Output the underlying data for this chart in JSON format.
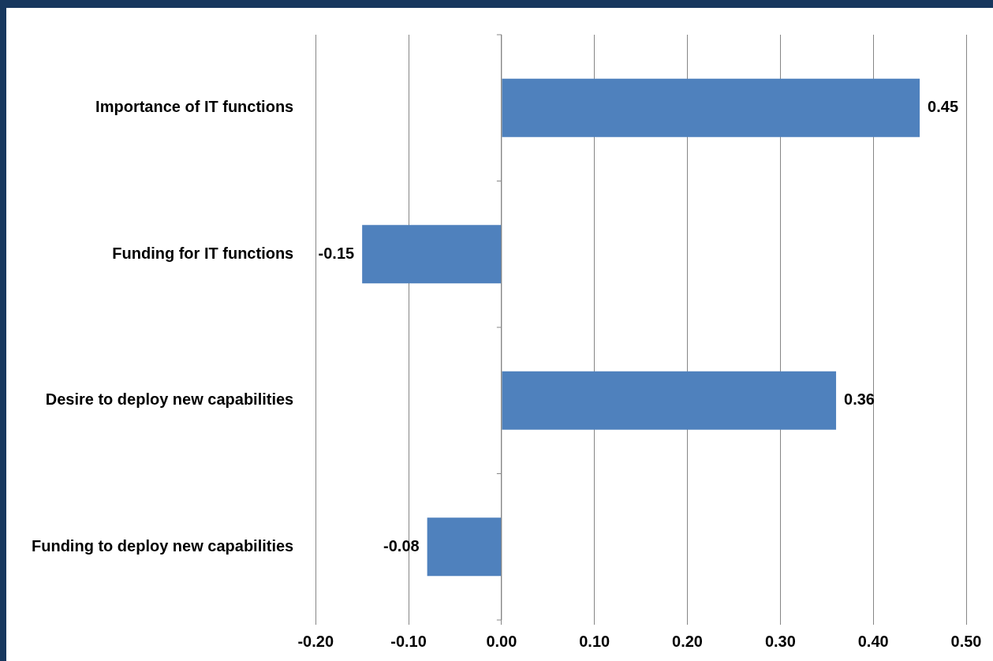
{
  "chart_data": {
    "type": "bar",
    "orientation": "horizontal",
    "categories": [
      "Importance of IT functions",
      "Funding for IT functions",
      "Desire to deploy new capabilities",
      "Funding to deploy new capabilities"
    ],
    "values": [
      0.45,
      -0.15,
      0.36,
      -0.08
    ],
    "color": "#4f81bd",
    "xlim": [
      -0.2,
      0.5
    ],
    "xticks": [
      {
        "value": -0.2,
        "label": "-0.20"
      },
      {
        "value": -0.1,
        "label": "-0.10"
      },
      {
        "value": 0,
        "label": "0.00"
      },
      {
        "value": 0.1,
        "label": "0.10"
      },
      {
        "value": 0.2,
        "label": "0.20"
      },
      {
        "value": 0.3,
        "label": "0.30"
      },
      {
        "value": 0.4,
        "label": "0.40"
      },
      {
        "value": 0.5,
        "label": "0.50"
      }
    ],
    "grid": "x",
    "data_labels": true
  }
}
